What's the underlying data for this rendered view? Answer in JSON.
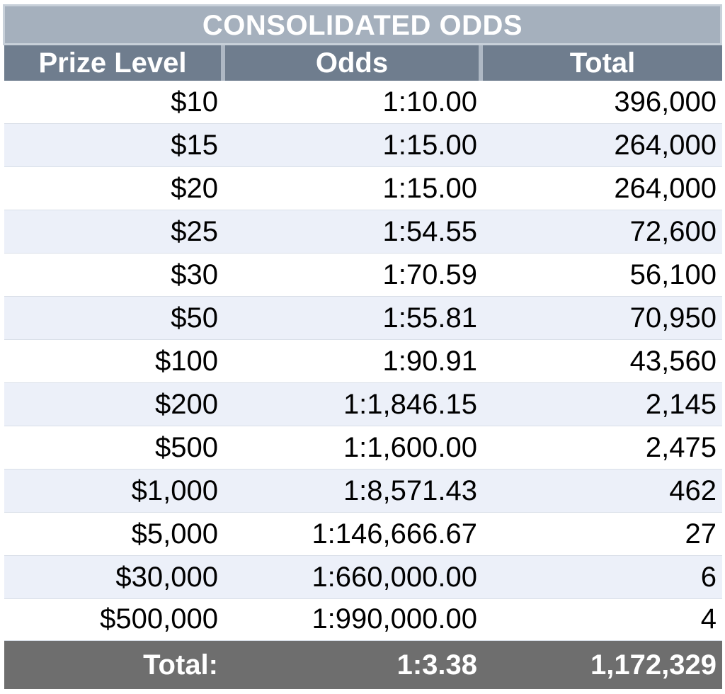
{
  "title": "CONSOLIDATED ODDS",
  "headers": [
    "Prize Level",
    "Odds",
    "Total"
  ],
  "rows": [
    [
      "$10",
      "1:10.00",
      "396,000"
    ],
    [
      "$15",
      "1:15.00",
      "264,000"
    ],
    [
      "$20",
      "1:15.00",
      "264,000"
    ],
    [
      "$25",
      "1:54.55",
      "72,600"
    ],
    [
      "$30",
      "1:70.59",
      "56,100"
    ],
    [
      "$50",
      "1:55.81",
      "70,950"
    ],
    [
      "$100",
      "1:90.91",
      "43,560"
    ],
    [
      "$200",
      "1:1,846.15",
      "2,145"
    ],
    [
      "$500",
      "1:1,600.00",
      "2,475"
    ],
    [
      "$1,000",
      "1:8,571.43",
      "462"
    ],
    [
      "$5,000",
      "1:146,666.67",
      "27"
    ],
    [
      "$30,000",
      "1:660,000.00",
      "6"
    ],
    [
      "$500,000",
      "1:990,000.00",
      "4"
    ]
  ],
  "total": [
    "Total:",
    "1:3.38",
    "1,172,329"
  ],
  "colors": {
    "title_bg": "#a5b0bd",
    "header_bg": "#6f7d8e",
    "alt_row_bg": "#ecf0f9",
    "total_bg": "#6e6e6e"
  }
}
